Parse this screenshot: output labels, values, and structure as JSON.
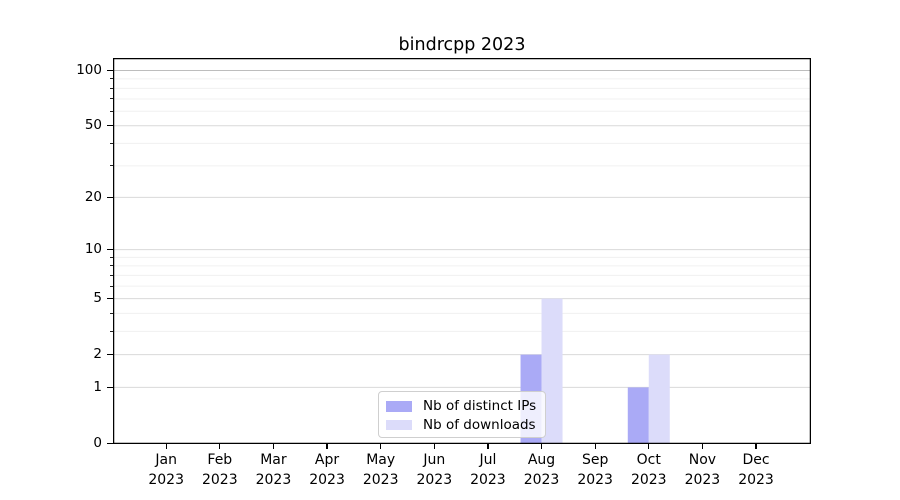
{
  "chart_data": {
    "type": "bar",
    "title": "bindrcpp 2023",
    "categories": [
      "Jan",
      "Feb",
      "Mar",
      "Apr",
      "May",
      "Jun",
      "Jul",
      "Aug",
      "Sep",
      "Oct",
      "Nov",
      "Dec"
    ],
    "category_year": "2023",
    "series": [
      {
        "name": "Nb of distinct IPs",
        "color": "#aaaaf6",
        "values": [
          0,
          0,
          0,
          0,
          0,
          0,
          0,
          2,
          0,
          1,
          0,
          0
        ]
      },
      {
        "name": "Nb of downloads",
        "color": "#dcdcfa",
        "values": [
          0,
          0,
          0,
          0,
          0,
          0,
          0,
          5,
          0,
          2,
          0,
          0
        ]
      }
    ],
    "xlabel": "",
    "ylabel": "",
    "yscale": "log1p",
    "ylim": [
      0,
      116
    ],
    "yticks": [
      0,
      1,
      2,
      5,
      10,
      20,
      50,
      100
    ],
    "yminorticks": [
      3,
      4,
      6,
      7,
      8,
      9,
      30,
      40,
      60,
      70,
      80,
      90
    ],
    "grid": true,
    "legend": {
      "position": "lower center"
    }
  },
  "colors": {
    "spine": "#000000",
    "major_grid": "#d9d9d9",
    "minor_grid": "#f0f0f0",
    "top_major_grid": "#bdbdbd",
    "background": "#ffffff"
  }
}
